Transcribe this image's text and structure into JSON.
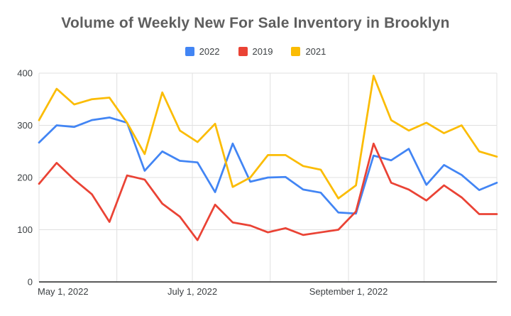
{
  "chart_data": {
    "type": "line",
    "title": "Volume of Weekly New For Sale Inventory in Brooklyn",
    "x_axis": {
      "tick_labels": [
        {
          "label": "May 1, 2022",
          "pos": 0.0,
          "anchor": "start"
        },
        {
          "label": "July 1, 2022",
          "pos": 0.335,
          "anchor": "middle"
        },
        {
          "label": "September 1, 2022",
          "pos": 0.676,
          "anchor": "middle"
        }
      ],
      "gridline_positions": [
        0,
        0.17,
        0.335,
        0.505,
        0.676,
        0.841,
        1.0
      ]
    },
    "y_axis": {
      "min": 0,
      "max": 400,
      "ticks": [
        0,
        100,
        200,
        300,
        400
      ]
    },
    "grid": true,
    "legend_position": "top",
    "series": [
      {
        "name": "2022",
        "color": "#4285F4",
        "values": [
          267,
          300,
          297,
          310,
          315,
          305,
          213,
          250,
          232,
          229,
          172,
          265,
          192,
          200,
          201,
          177,
          171,
          133,
          131,
          242,
          233,
          255,
          186,
          224,
          205,
          176,
          190
        ]
      },
      {
        "name": "2019",
        "color": "#EA4335",
        "values": [
          188,
          228,
          196,
          168,
          115,
          204,
          196,
          150,
          125,
          80,
          148,
          114,
          108,
          95,
          103,
          90,
          95,
          100,
          135,
          265,
          190,
          177,
          156,
          185,
          162,
          130,
          130
        ]
      },
      {
        "name": "2021",
        "color": "#FBBC04",
        "values": [
          310,
          370,
          340,
          350,
          353,
          305,
          245,
          363,
          290,
          268,
          303,
          182,
          200,
          243,
          243,
          222,
          215,
          160,
          185,
          395,
          310,
          290,
          305,
          285,
          300,
          250,
          240
        ]
      }
    ]
  },
  "colors": {
    "background": "#ffffff",
    "gridline": "#e0e0e0",
    "axis_line": "#424242",
    "tick_label": "#3c4043",
    "title": "#5e5e5e"
  }
}
